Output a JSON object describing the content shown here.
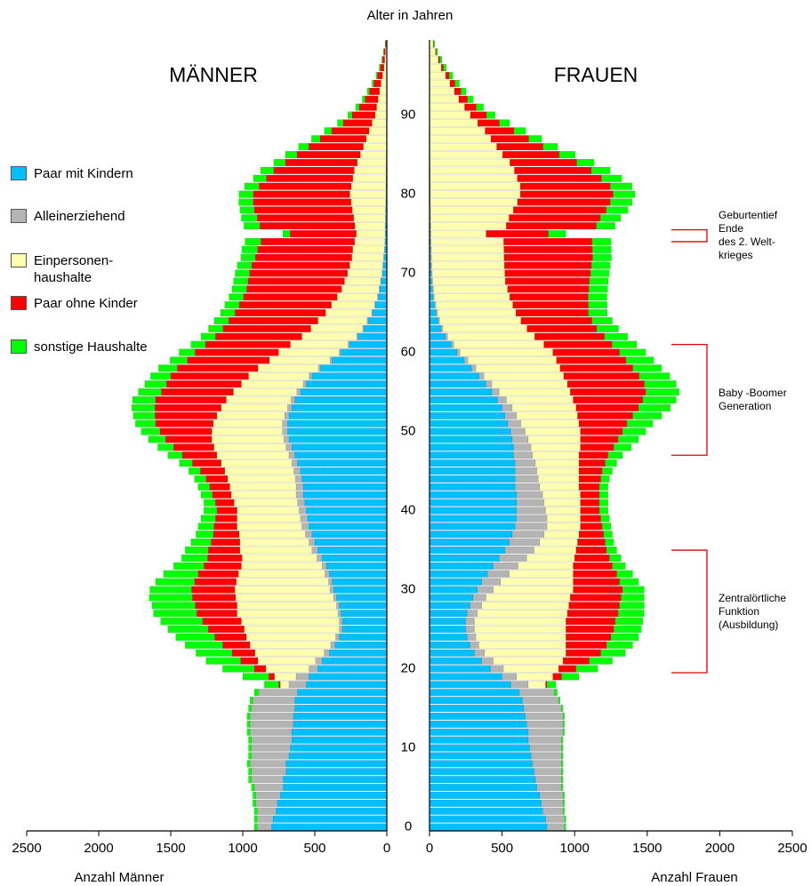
{
  "chart_data": [
    {
      "type": "bar",
      "orientation": "horizontal",
      "stacked": true,
      "direction": "left",
      "title": "MÄNNER",
      "xlabel": "Anzahl Männer",
      "ylabel": "Alter in Jahren",
      "xlim": [
        0,
        2500
      ],
      "xticks": [
        0,
        500,
        1000,
        1500,
        2000,
        2500
      ],
      "ylim": [
        0,
        100
      ],
      "yticks": [
        0,
        10,
        20,
        30,
        40,
        50,
        60,
        70,
        80,
        90
      ],
      "series": [
        {
          "name": "Paar mit Kindern",
          "color": "#00bfff",
          "values": [
            800,
            790,
            770,
            760,
            740,
            720,
            720,
            700,
            700,
            680,
            670,
            660,
            660,
            650,
            650,
            640,
            640,
            620,
            560,
            540,
            480,
            450,
            400,
            360,
            330,
            310,
            310,
            320,
            330,
            350,
            370,
            380,
            400,
            420,
            450,
            480,
            500,
            520,
            540,
            550,
            560,
            570,
            580,
            580,
            590,
            600,
            620,
            640,
            660,
            680,
            690,
            690,
            680,
            660,
            640,
            600,
            560,
            520,
            460,
            380,
            320,
            260,
            200,
            160,
            130,
            100,
            80,
            60,
            50,
            40,
            30,
            25,
            20,
            15,
            12,
            10,
            10,
            8,
            8,
            6,
            5,
            5,
            4,
            4,
            3,
            3,
            2,
            2,
            2,
            2,
            0,
            0,
            0,
            0,
            0,
            0,
            0,
            0,
            0,
            0
          ]
        },
        {
          "name": "Alleinerziehend",
          "color": "#b4b4b4",
          "values": [
            100,
            110,
            130,
            150,
            170,
            200,
            220,
            240,
            250,
            260,
            270,
            280,
            290,
            300,
            300,
            300,
            290,
            270,
            120,
            90,
            60,
            45,
            35,
            30,
            25,
            20,
            20,
            20,
            20,
            20,
            25,
            25,
            30,
            30,
            35,
            40,
            40,
            45,
            50,
            50,
            50,
            50,
            50,
            50,
            45,
            45,
            40,
            40,
            40,
            35,
            35,
            35,
            30,
            30,
            25,
            25,
            20,
            20,
            15,
            15,
            12,
            10,
            10,
            8,
            8,
            5,
            5,
            5,
            4,
            4,
            3,
            3,
            3,
            2,
            2,
            2,
            2,
            2,
            2,
            2,
            2,
            2,
            2,
            2,
            2,
            1,
            1,
            1,
            1,
            1,
            1,
            1,
            1,
            1,
            1,
            0,
            0,
            0,
            0,
            0
          ]
        },
        {
          "name": "Einpersonen-\nhaushalte",
          "color": "#ffffb0",
          "values": [
            0,
            0,
            0,
            0,
            0,
            0,
            0,
            0,
            0,
            0,
            0,
            0,
            0,
            0,
            0,
            0,
            0,
            0,
            60,
            150,
            300,
            400,
            480,
            560,
            620,
            660,
            680,
            700,
            690,
            680,
            660,
            640,
            600,
            560,
            520,
            500,
            480,
            460,
            450,
            440,
            430,
            440,
            450,
            460,
            470,
            480,
            490,
            500,
            500,
            500,
            490,
            480,
            470,
            460,
            450,
            440,
            430,
            420,
            420,
            420,
            420,
            400,
            380,
            360,
            340,
            320,
            300,
            280,
            260,
            250,
            240,
            230,
            220,
            220,
            210,
            200,
            210,
            220,
            230,
            240,
            250,
            240,
            230,
            220,
            200,
            180,
            160,
            140,
            120,
            100,
            80,
            70,
            60,
            50,
            40,
            30,
            20,
            15,
            10,
            5
          ]
        },
        {
          "name": "Paar ohne Kinder",
          "color": "#ff0000",
          "values": [
            0,
            0,
            0,
            0,
            0,
            0,
            0,
            0,
            0,
            0,
            0,
            0,
            0,
            0,
            0,
            0,
            0,
            0,
            10,
            40,
            80,
            120,
            160,
            190,
            220,
            250,
            270,
            280,
            290,
            300,
            300,
            290,
            280,
            260,
            240,
            220,
            200,
            180,
            160,
            150,
            140,
            130,
            130,
            140,
            150,
            170,
            200,
            240,
            280,
            320,
            360,
            400,
            430,
            460,
            490,
            500,
            520,
            540,
            560,
            570,
            580,
            590,
            600,
            610,
            620,
            630,
            640,
            650,
            660,
            670,
            680,
            680,
            670,
            660,
            650,
            460,
            660,
            670,
            680,
            680,
            670,
            640,
            600,
            560,
            500,
            440,
            380,
            320,
            260,
            200,
            160,
            120,
            90,
            70,
            50,
            35,
            25,
            15,
            10,
            5
          ]
        },
        {
          "name": "sonstige Haushalte",
          "color": "#00ff00",
          "values": [
            20,
            20,
            20,
            20,
            20,
            20,
            20,
            20,
            20,
            20,
            20,
            20,
            20,
            20,
            20,
            20,
            20,
            30,
            100,
            180,
            220,
            240,
            250,
            260,
            270,
            280,
            290,
            300,
            300,
            300,
            290,
            270,
            240,
            210,
            180,
            160,
            140,
            120,
            110,
            100,
            90,
            80,
            80,
            80,
            80,
            80,
            90,
            100,
            110,
            120,
            130,
            140,
            150,
            160,
            160,
            160,
            150,
            140,
            130,
            120,
            110,
            100,
            100,
            100,
            100,
            100,
            100,
            100,
            100,
            100,
            100,
            100,
            100,
            110,
            110,
            50,
            110,
            110,
            100,
            100,
            100,
            100,
            90,
            90,
            80,
            80,
            70,
            60,
            50,
            40,
            30,
            25,
            20,
            15,
            12,
            10,
            8,
            5,
            4,
            2
          ]
        }
      ]
    },
    {
      "type": "bar",
      "orientation": "horizontal",
      "stacked": true,
      "direction": "right",
      "title": "FRAUEN",
      "xlabel": "Anzahl Frauen",
      "xlim": [
        0,
        2500
      ],
      "xticks": [
        0,
        500,
        1000,
        1500,
        2000,
        2500
      ],
      "series": [
        {
          "color": "#00bfff",
          "values": [
            810,
            800,
            780,
            770,
            760,
            740,
            730,
            720,
            710,
            700,
            690,
            680,
            680,
            670,
            660,
            650,
            640,
            620,
            560,
            500,
            420,
            360,
            310,
            280,
            260,
            250,
            250,
            260,
            280,
            300,
            330,
            360,
            400,
            440,
            480,
            520,
            550,
            570,
            590,
            600,
            600,
            600,
            600,
            590,
            590,
            590,
            590,
            580,
            580,
            570,
            560,
            540,
            520,
            500,
            470,
            430,
            390,
            340,
            290,
            240,
            190,
            150,
            110,
            80,
            60,
            45,
            35,
            25,
            20,
            15,
            12,
            10,
            8,
            8,
            6,
            5,
            5,
            4,
            4,
            3,
            3,
            3,
            2,
            2,
            2,
            2,
            1,
            1,
            1,
            1,
            1,
            1,
            1,
            1,
            0,
            0,
            0,
            0,
            0,
            0
          ]
        },
        {
          "color": "#b4b4b4",
          "values": [
            120,
            130,
            140,
            150,
            160,
            170,
            180,
            190,
            200,
            210,
            220,
            230,
            240,
            250,
            260,
            260,
            250,
            240,
            120,
            100,
            90,
            80,
            70,
            60,
            60,
            60,
            60,
            70,
            80,
            90,
            110,
            130,
            150,
            170,
            190,
            200,
            210,
            220,
            220,
            210,
            200,
            190,
            180,
            170,
            160,
            150,
            140,
            130,
            120,
            110,
            100,
            90,
            80,
            70,
            60,
            50,
            40,
            35,
            30,
            25,
            20,
            18,
            15,
            12,
            10,
            10,
            9,
            8,
            8,
            7,
            7,
            6,
            6,
            5,
            5,
            5,
            4,
            4,
            4,
            3,
            3,
            3,
            3,
            3,
            2,
            2,
            2,
            2,
            2,
            1,
            1,
            1,
            1,
            1,
            1,
            1,
            1,
            1,
            1,
            0
          ]
        },
        {
          "color": "#ffffb0",
          "values": [
            0,
            0,
            0,
            0,
            0,
            0,
            0,
            0,
            0,
            0,
            0,
            0,
            0,
            0,
            0,
            0,
            0,
            0,
            120,
            250,
            380,
            480,
            560,
            600,
            620,
            630,
            630,
            620,
            600,
            580,
            550,
            500,
            440,
            380,
            330,
            290,
            260,
            240,
            230,
            230,
            240,
            250,
            260,
            270,
            280,
            290,
            300,
            320,
            340,
            360,
            380,
            400,
            420,
            440,
            460,
            490,
            520,
            550,
            580,
            610,
            640,
            620,
            600,
            580,
            560,
            540,
            530,
            520,
            510,
            500,
            500,
            500,
            500,
            500,
            500,
            380,
            520,
            540,
            570,
            600,
            620,
            620,
            600,
            580,
            550,
            500,
            460,
            420,
            380,
            330,
            280,
            240,
            200,
            170,
            140,
            110,
            80,
            60,
            40,
            25
          ]
        },
        {
          "color": "#ff0000",
          "values": [
            0,
            0,
            0,
            0,
            0,
            0,
            0,
            0,
            0,
            0,
            0,
            0,
            0,
            0,
            0,
            0,
            0,
            0,
            10,
            60,
            120,
            180,
            240,
            280,
            310,
            330,
            340,
            350,
            350,
            350,
            340,
            320,
            300,
            270,
            240,
            210,
            190,
            170,
            150,
            140,
            130,
            130,
            130,
            140,
            150,
            160,
            180,
            200,
            230,
            260,
            290,
            330,
            380,
            430,
            480,
            520,
            530,
            520,
            500,
            480,
            460,
            470,
            480,
            480,
            490,
            500,
            520,
            540,
            560,
            580,
            590,
            600,
            610,
            610,
            610,
            430,
            620,
            630,
            640,
            640,
            640,
            620,
            580,
            530,
            460,
            390,
            320,
            260,
            200,
            150,
            110,
            80,
            60,
            45,
            35,
            25,
            15,
            10,
            6,
            3
          ]
        },
        {
          "color": "#00ff00",
          "values": [
            10,
            10,
            10,
            10,
            10,
            10,
            10,
            10,
            10,
            10,
            10,
            10,
            10,
            10,
            10,
            10,
            10,
            20,
            60,
            120,
            150,
            160,
            170,
            180,
            190,
            190,
            190,
            180,
            170,
            160,
            150,
            130,
            110,
            90,
            80,
            70,
            60,
            60,
            60,
            60,
            60,
            60,
            60,
            60,
            60,
            70,
            80,
            100,
            120,
            140,
            160,
            180,
            200,
            220,
            230,
            230,
            220,
            210,
            200,
            190,
            180,
            170,
            160,
            150,
            140,
            130,
            130,
            130,
            130,
            130,
            130,
            130,
            130,
            130,
            130,
            120,
            130,
            140,
            150,
            150,
            150,
            150,
            140,
            130,
            120,
            110,
            100,
            90,
            80,
            70,
            60,
            50,
            40,
            35,
            30,
            25,
            20,
            15,
            10,
            8
          ]
        }
      ],
      "annotations": [
        {
          "text": "Geburtentief\nEnde\ndes 2. Welt-\nkrieges",
          "range": [
            74.5,
            76
          ]
        },
        {
          "text": "Baby -Boomer\nGeneration",
          "range": [
            47.5,
            61.5
          ]
        },
        {
          "text": "Zentralörtliche\nFunktion\n(Ausbildung)",
          "range": [
            20,
            35.5
          ]
        }
      ]
    }
  ]
}
